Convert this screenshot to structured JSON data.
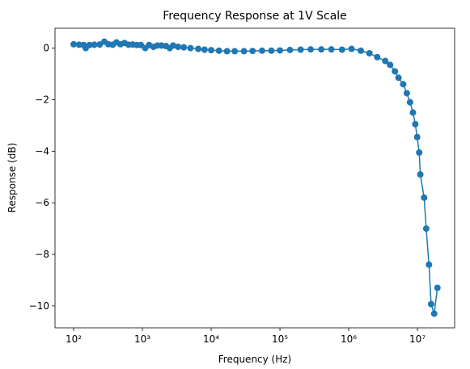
{
  "chart_data": {
    "type": "line",
    "title": "Frequency Response at 1V Scale",
    "xlabel": "Frequency (Hz)",
    "ylabel": "Response (dB)",
    "xscale": "log",
    "xlim": [
      53.6,
      34700000
    ],
    "ylim": [
      -10.85,
      0.77
    ],
    "xticks": [
      {
        "value": 100,
        "label": "10²"
      },
      {
        "value": 1000,
        "label": "10³"
      },
      {
        "value": 10000,
        "label": "10⁴"
      },
      {
        "value": 100000,
        "label": "10⁵"
      },
      {
        "value": 1000000,
        "label": "10⁶"
      },
      {
        "value": 10000000,
        "label": "10⁷"
      }
    ],
    "yticks": [
      0,
      {
        "value": -2,
        "label": "−2"
      },
      {
        "value": -4,
        "label": "−4"
      },
      {
        "value": -6,
        "label": "−6"
      },
      {
        "value": -8,
        "label": "−8"
      },
      {
        "value": -10,
        "label": "−10"
      }
    ],
    "grid": false,
    "series": [
      {
        "color": "#1f77b4",
        "x": [
          100,
          120,
          140,
          150,
          170,
          200,
          240,
          280,
          320,
          370,
          420,
          480,
          550,
          630,
          720,
          830,
          950,
          1100,
          1250,
          1450,
          1650,
          1900,
          2200,
          2500,
          2800,
          3300,
          4000,
          5000,
          6500,
          8000,
          10000,
          13000,
          17000,
          22000,
          30000,
          40000,
          55000,
          75000,
          100000,
          140000,
          200000,
          280000,
          400000,
          560000,
          800000,
          1100000,
          1500000,
          2000000,
          2600000,
          3400000,
          4000000,
          4700000,
          5300000,
          6200000,
          7000000,
          7800000,
          8600000,
          9300000,
          9900000,
          10600000,
          11000000,
          12500000,
          13400000,
          14700000,
          15800000,
          17500000,
          19500000
        ],
        "values": [
          0.15,
          0.13,
          0.12,
          0.0,
          0.12,
          0.13,
          0.14,
          0.25,
          0.15,
          0.13,
          0.22,
          0.15,
          0.2,
          0.13,
          0.14,
          0.12,
          0.12,
          0.0,
          0.12,
          0.05,
          0.1,
          0.1,
          0.08,
          0.0,
          0.1,
          0.05,
          0.03,
          0.0,
          -0.03,
          -0.06,
          -0.08,
          -0.1,
          -0.12,
          -0.12,
          -0.12,
          -0.11,
          -0.1,
          -0.1,
          -0.09,
          -0.07,
          -0.06,
          -0.05,
          -0.05,
          -0.05,
          -0.06,
          -0.03,
          -0.1,
          -0.2,
          -0.35,
          -0.5,
          -0.65,
          -0.9,
          -1.15,
          -1.4,
          -1.75,
          -2.1,
          -2.5,
          -2.95,
          -3.45,
          -4.05,
          -4.9,
          -5.8,
          -7.0,
          -8.4,
          -9.93,
          -10.3,
          -9.3
        ]
      }
    ]
  }
}
